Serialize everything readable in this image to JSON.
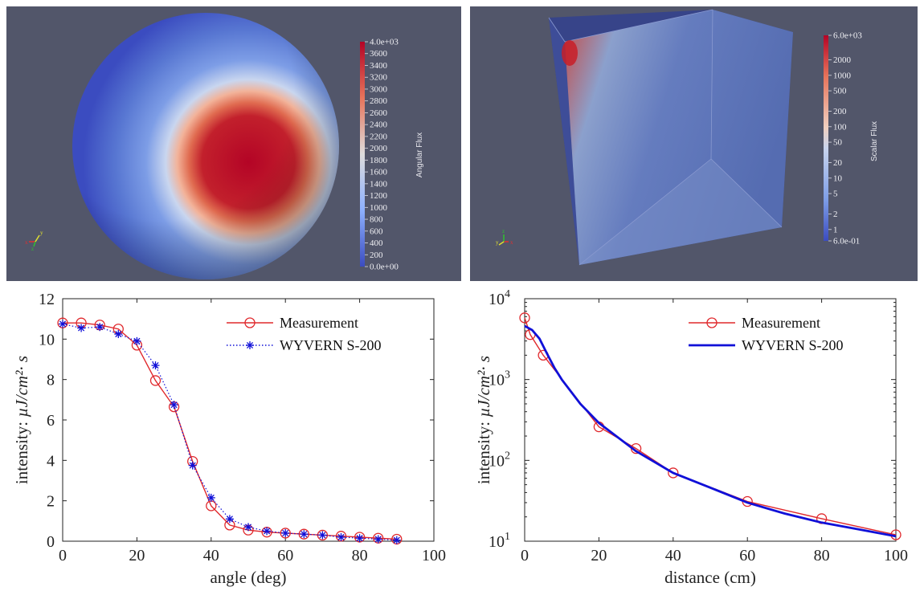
{
  "colors": {
    "viewport_bg": "#52566a",
    "measurement": "#e0282c",
    "wyvern": "#1010d8",
    "cool": "#3b4cc0",
    "warm": "#b40426"
  },
  "tl": {
    "colorbar_title": "Angular Flux",
    "colorbar_labels": [
      "4.0e+03",
      "3600",
      "3400",
      "3200",
      "3000",
      "2800",
      "2600",
      "2400",
      "2200",
      "2000",
      "1800",
      "1600",
      "1400",
      "1200",
      "1000",
      "800",
      "600",
      "400",
      "200",
      "0.0e+00"
    ],
    "axes_labels": [
      "x",
      "z",
      "y"
    ]
  },
  "tr": {
    "colorbar_title": "Scalar Flux",
    "colorbar_labels": [
      "6.0e+03",
      "2000",
      "1000",
      "500",
      "200",
      "100",
      "50",
      "20",
      "10",
      "5",
      "2",
      "1",
      "6.0e-01"
    ],
    "axes_labels": [
      "z",
      "y",
      "x"
    ]
  },
  "chart_data": [
    {
      "type": "line",
      "xlabel": "angle (deg)",
      "ylabel": "intensity:",
      "ylabel_unit": "µJ/cm²· s",
      "xlim": [
        0,
        100
      ],
      "ylim": [
        0,
        12
      ],
      "xticks": [
        0,
        20,
        40,
        60,
        80,
        100
      ],
      "yticks": [
        0,
        2,
        4,
        6,
        8,
        10,
        12
      ],
      "legend_position": "top-right",
      "series": [
        {
          "name": "Measurement",
          "marker": "circle",
          "linestyle": "solid",
          "x": [
            0,
            5,
            10,
            15,
            20,
            25,
            30,
            35,
            40,
            45,
            50,
            55,
            60,
            65,
            70,
            75,
            80,
            85,
            90
          ],
          "y": [
            10.8,
            10.8,
            10.7,
            10.5,
            9.7,
            7.95,
            6.65,
            3.95,
            1.75,
            0.8,
            0.55,
            0.45,
            0.4,
            0.35,
            0.3,
            0.25,
            0.2,
            0.15,
            0.1
          ]
        },
        {
          "name": "WYVERN S-200",
          "marker": "asterisk",
          "linestyle": "dotted",
          "x": [
            0,
            5,
            10,
            15,
            20,
            25,
            30,
            35,
            40,
            45,
            50,
            55,
            60,
            65,
            70,
            75,
            80,
            85,
            90
          ],
          "y": [
            10.75,
            10.55,
            10.6,
            10.25,
            9.9,
            8.7,
            6.75,
            3.75,
            2.15,
            1.1,
            0.7,
            0.5,
            0.4,
            0.35,
            0.3,
            0.2,
            0.15,
            0.1,
            0.05
          ]
        }
      ]
    },
    {
      "type": "line",
      "xlabel": "distance (cm)",
      "ylabel": "intensity:",
      "ylabel_unit": "µJ/cm²· s",
      "xlim": [
        0,
        100
      ],
      "ylim": [
        10,
        10000
      ],
      "yscale": "log",
      "xticks": [
        0,
        20,
        40,
        60,
        80,
        100
      ],
      "ytick_exponents": [
        1,
        2,
        3,
        4
      ],
      "legend_position": "top-right",
      "series": [
        {
          "name": "Measurement",
          "marker": "circle",
          "linestyle": "solid",
          "x": [
            0,
            1.5,
            5,
            20,
            30,
            40,
            60,
            80,
            100
          ],
          "y": [
            5800,
            3600,
            2000,
            260,
            140,
            70,
            31,
            19,
            12
          ]
        },
        {
          "name": "WYVERN S-200",
          "marker": "none",
          "linestyle": "solid-thick",
          "x": [
            0,
            2,
            4,
            6,
            8,
            10,
            15,
            20,
            30,
            40,
            50,
            60,
            70,
            80,
            90,
            100
          ],
          "y": [
            4600,
            4100,
            3200,
            2100,
            1400,
            1000,
            500,
            290,
            130,
            70,
            46,
            30,
            22,
            17,
            14,
            11.5
          ]
        }
      ]
    }
  ]
}
